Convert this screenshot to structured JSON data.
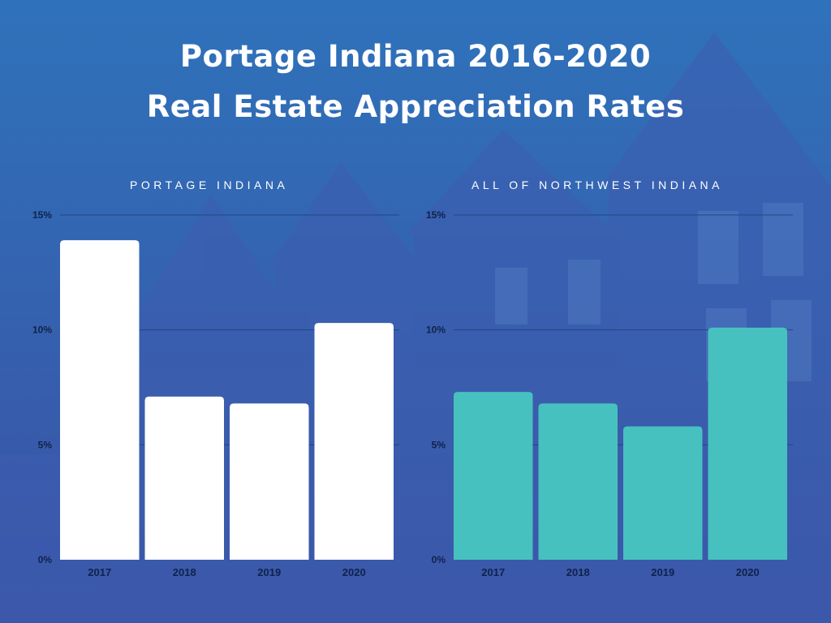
{
  "title": {
    "line1": "Portage Indiana 2016-2020",
    "line2": "Real Estate Appreciation Rates"
  },
  "colors": {
    "background_top": "#2f6fb8",
    "background_bottom": "#3a55a8",
    "house_tint": "#3d5fb0",
    "left_bars": "#ffffff",
    "right_bars": "#47c1bf",
    "gridline": "#1f3f78",
    "text": "#ffffff",
    "tick_text": "#10224a"
  },
  "chart_data": [
    {
      "type": "bar",
      "title": "PORTAGE INDIANA",
      "categories": [
        "2017",
        "2018",
        "2019",
        "2020"
      ],
      "values": [
        13.9,
        7.1,
        6.8,
        10.3
      ],
      "ylim": [
        0,
        15
      ],
      "yticks": [
        "0%",
        "5%",
        "10%",
        "15%"
      ],
      "grid": true,
      "bar_color": "#ffffff"
    },
    {
      "type": "bar",
      "title": "ALL OF NORTHWEST INDIANA",
      "categories": [
        "2017",
        "2018",
        "2019",
        "2020"
      ],
      "values": [
        7.3,
        6.8,
        5.8,
        10.1
      ],
      "ylim": [
        0,
        15
      ],
      "yticks": [
        "0%",
        "5%",
        "10%",
        "15%"
      ],
      "grid": true,
      "bar_color": "#47c1bf"
    }
  ]
}
